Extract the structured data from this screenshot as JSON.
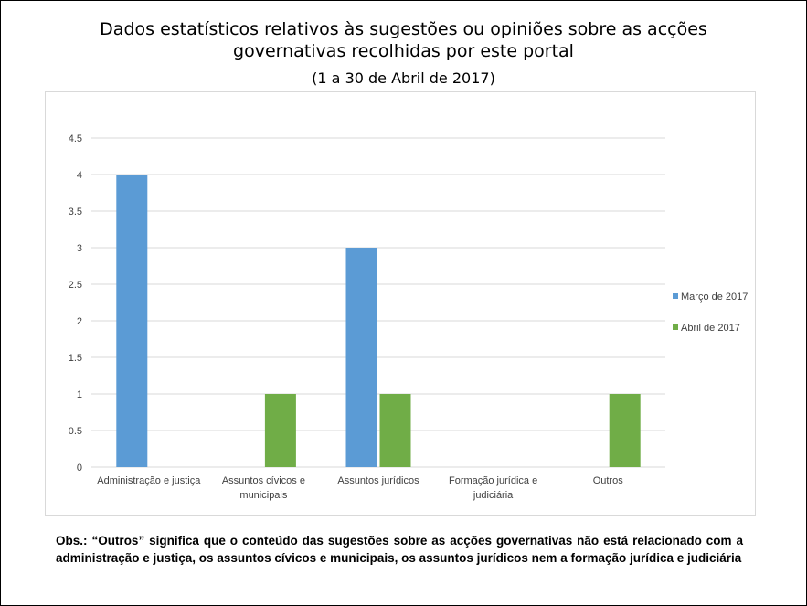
{
  "header": {
    "title": "Dados estatísticos relativos às sugestões ou opiniões sobre as acções governativas recolhidas por este portal",
    "subtitle": "(1 a 30 de Abril de 2017)"
  },
  "chart_data": {
    "type": "bar",
    "categories": [
      [
        "Administração e justiça"
      ],
      [
        "Assuntos cívicos e",
        "municipais"
      ],
      [
        "Assuntos jurídicos"
      ],
      [
        "Formação jurídica e",
        "judiciária"
      ],
      [
        "Outros"
      ]
    ],
    "series": [
      {
        "name": "Março de 2017",
        "values": [
          4,
          0,
          3,
          0,
          0
        ],
        "color": "#5B9BD5"
      },
      {
        "name": "Abril de 2017",
        "values": [
          0,
          1,
          1,
          0,
          1
        ],
        "color": "#70AD47"
      }
    ],
    "yticks": [
      "0",
      "0.5",
      "1",
      "1.5",
      "2",
      "2.5",
      "3",
      "3.5",
      "4",
      "4.5"
    ],
    "ylim": [
      0,
      4.5
    ],
    "grid": true,
    "legend_position": "right"
  },
  "note": {
    "text": "Obs.: “Outros” significa que o conteúdo das sugestões sobre as acções governativas não está relacionado com a administração e justiça, os assuntos cívicos e municipais, os assuntos jurídicos nem a formação jurídica e judiciária"
  }
}
